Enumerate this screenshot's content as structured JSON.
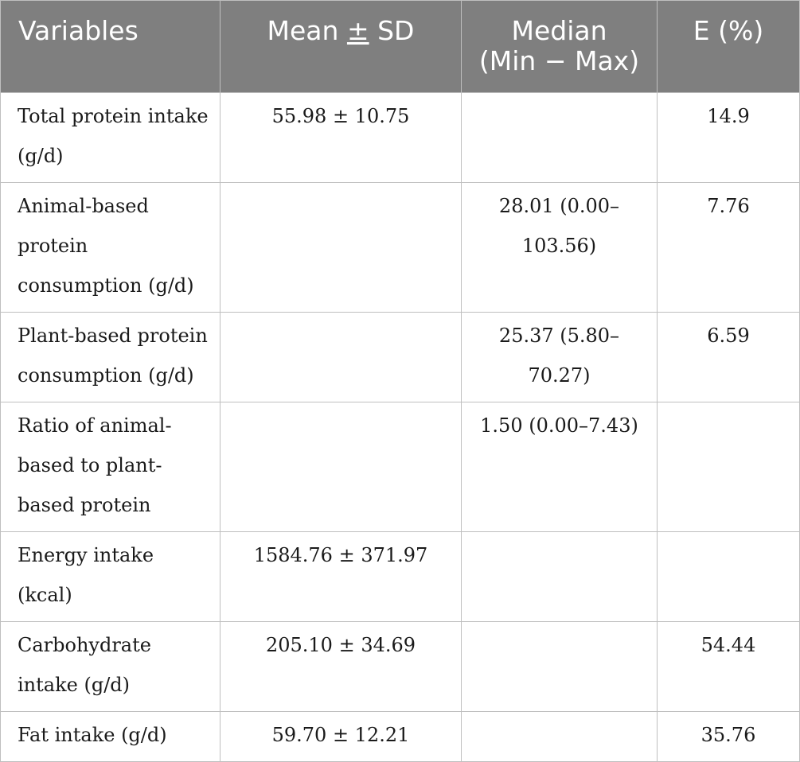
{
  "headers": {
    "variables": "Variables",
    "mean_sd_prefix": "Mean ",
    "mean_sd_pm": "±",
    "mean_sd_suffix": " SD",
    "median_line1": "Median",
    "median_line2": "(Min − Max)",
    "energy_pct": "E (%)"
  },
  "rows": [
    {
      "variable": "Total protein intake (g/d)",
      "mean_sd": "55.98 ± 10.75",
      "median": "",
      "e_pct": "14.9"
    },
    {
      "variable": "Animal-based protein consumption (g/d)",
      "mean_sd": "",
      "median": "28.01 (0.00–103.56)",
      "e_pct": "7.76"
    },
    {
      "variable": "Plant-based protein consumption (g/d)",
      "mean_sd": "",
      "median": "25.37 (5.80–70.27)",
      "e_pct": "6.59"
    },
    {
      "variable": "Ratio of animal-based to plant-based protein",
      "mean_sd": "",
      "median": "1.50 (0.00–7.43)",
      "e_pct": ""
    },
    {
      "variable": "Energy intake (kcal)",
      "mean_sd": "1584.76 ± 371.97",
      "median": "",
      "e_pct": ""
    },
    {
      "variable": "Carbohydrate intake (g/d)",
      "mean_sd": "205.10 ± 34.69",
      "median": "",
      "e_pct": "54.44"
    },
    {
      "variable": "Fat intake (g/d)",
      "mean_sd": "59.70 ± 12.21",
      "median": "",
      "e_pct": "35.76"
    }
  ]
}
